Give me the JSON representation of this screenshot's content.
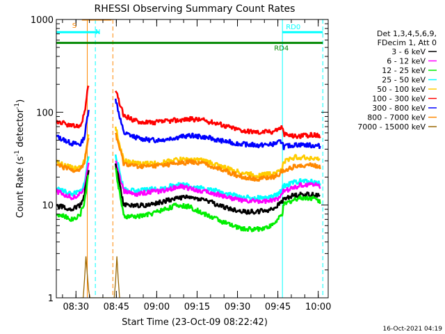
{
  "colors": {
    "3-6": "#000000",
    "6-12": "#ff00ff",
    "12-25": "#00ee00",
    "25-50": "#00ffff",
    "50-100": "#ffcc00",
    "100-300": "#ff0000",
    "300-800": "#0000ff",
    "800-7000": "#ff8800",
    "7000-15000": "#996600",
    "rd": "#008800",
    "sn": "#ff8800"
  },
  "chart_data": {
    "type": "line",
    "title": "RHESSI Observing Summary Count Rates",
    "xlabel": "Start Time (23-Oct-09 08:22:42)",
    "ylabel": "Count Rate (s",
    "ylabel_sup": "-1",
    "ylabel_mid": " detector",
    "ylabel_end": ")",
    "yscale": "log",
    "ylim": [
      1,
      1000
    ],
    "xlim_minutes_after_0822": [
      0,
      101
    ],
    "x_tick_labels": [
      "08:30",
      "08:45",
      "09:00",
      "09:15",
      "09:30",
      "09:45",
      "10:00"
    ],
    "x_tick_minutes_after_0822": [
      7.3,
      22.3,
      37.3,
      52.3,
      67.3,
      82.3,
      97.3
    ],
    "y_tick_labels": [
      "1",
      "10",
      "100",
      "1000"
    ],
    "y_tick_values": [
      1,
      10,
      100,
      1000
    ],
    "legend": {
      "placement": "right",
      "header": [
        "Det 1,3,4,5,6,9,",
        "FDecim 1, Att 0"
      ],
      "entries": [
        {
          "label": "3 - 6 keV",
          "series": "3-6"
        },
        {
          "label": "6 - 12 keV",
          "series": "6-12"
        },
        {
          "label": "12 - 25 keV",
          "series": "12-25"
        },
        {
          "label": "25 - 50 keV",
          "series": "25-50"
        },
        {
          "label": "50 - 100 keV",
          "series": "50-100"
        },
        {
          "label": "100 - 300 keV",
          "series": "100-300"
        },
        {
          "label": "300 - 800 keV",
          "series": "300-800"
        },
        {
          "label": "800 - 7000 keV",
          "series": "800-7000"
        },
        {
          "label": "7000 - 15000 keV",
          "series": "7000-15000"
        }
      ]
    },
    "flags": [
      {
        "label": "S",
        "start": 9.5,
        "end": 20.5,
        "level": 1000,
        "color": "sn"
      },
      {
        "label": "N",
        "start": 0,
        "end": 16,
        "level": 730,
        "color": "25-50"
      },
      {
        "label": "RD0",
        "start": 84,
        "end": 99,
        "level": 730,
        "color": "25-50"
      },
      {
        "label": "RD4",
        "start": 0,
        "end": 99,
        "level": 560,
        "color": "rd"
      }
    ],
    "markers": [
      {
        "x": 11.5,
        "style": "solid",
        "color": "sn"
      },
      {
        "x": 14.5,
        "style": "dashed",
        "color": "25-50"
      },
      {
        "x": 21,
        "style": "dashed",
        "color": "sn"
      },
      {
        "x": 84,
        "style": "solid",
        "color": "25-50"
      },
      {
        "x": 99,
        "style": "dashed",
        "color": "25-50"
      }
    ],
    "series": [
      {
        "key": "300-800",
        "x": [
          0,
          3,
          6,
          9,
          10.5,
          12,
          13,
          20,
          22,
          25,
          30,
          35,
          40,
          45,
          50,
          55,
          60,
          65,
          70,
          75,
          80,
          82.5,
          83.9,
          84.5,
          87,
          90,
          95,
          98
        ],
        "y": [
          55,
          50,
          46,
          45,
          55,
          110,
          null,
          null,
          140,
          60,
          53,
          50,
          51,
          54,
          56,
          54,
          50,
          47,
          45,
          44,
          45,
          47,
          49,
          42,
          44,
          45,
          44,
          43
        ]
      },
      {
        "key": "100-300",
        "x": [
          0,
          3,
          6,
          9,
          10.5,
          12,
          13,
          20,
          22,
          25,
          30,
          35,
          40,
          45,
          50,
          55,
          60,
          65,
          70,
          75,
          80,
          82.5,
          83.9,
          84.5,
          87,
          90,
          95,
          98
        ],
        "y": [
          80,
          75,
          70,
          72,
          100,
          200,
          null,
          null,
          170,
          92,
          80,
          77,
          79,
          82,
          85,
          82,
          76,
          68,
          63,
          61,
          62,
          66,
          70,
          58,
          56,
          55,
          57,
          56
        ]
      },
      {
        "key": "50-100",
        "x": [
          0,
          3,
          6,
          9,
          10.5,
          12,
          13,
          20,
          22,
          25,
          30,
          35,
          40,
          45,
          50,
          55,
          60,
          65,
          70,
          75,
          80,
          82.5,
          83.9,
          84.5,
          87,
          90,
          95,
          98
        ],
        "y": [
          29,
          27,
          25,
          25,
          30,
          60,
          null,
          null,
          70,
          30,
          28,
          28,
          29,
          31,
          31,
          30,
          27,
          24,
          22,
          21,
          22,
          23,
          25,
          29,
          32,
          33,
          32,
          31
        ]
      },
      {
        "key": "800-7000",
        "x": [
          0,
          3,
          6,
          9,
          10.5,
          12,
          13,
          20,
          22,
          25,
          30,
          35,
          40,
          45,
          50,
          55,
          60,
          65,
          70,
          75,
          80,
          82.5,
          83.9,
          84.5,
          87,
          90,
          95,
          98
        ],
        "y": [
          27,
          25,
          24,
          24,
          29,
          55,
          null,
          null,
          60,
          28,
          26,
          26,
          27,
          28,
          29,
          28,
          25,
          22,
          20,
          19,
          20,
          21,
          23,
          23,
          25,
          27,
          27,
          26
        ]
      },
      {
        "key": "25-50",
        "x": [
          0,
          3,
          6,
          9,
          10.5,
          12,
          13,
          20,
          22,
          25,
          30,
          35,
          40,
          45,
          50,
          55,
          60,
          65,
          70,
          75,
          80,
          82.5,
          83.9,
          84.5,
          87,
          90,
          95,
          98
        ],
        "y": [
          15,
          14,
          13,
          14,
          17,
          35,
          null,
          null,
          35,
          15,
          14,
          15,
          15,
          17,
          16,
          15,
          14,
          13,
          12,
          12,
          12,
          13,
          15,
          16,
          17,
          18,
          18,
          17
        ]
      },
      {
        "key": "6-12",
        "x": [
          0,
          3,
          6,
          9,
          10.5,
          12,
          13,
          20,
          22,
          25,
          30,
          35,
          40,
          45,
          50,
          55,
          60,
          65,
          70,
          75,
          80,
          82.5,
          83.9,
          84.5,
          87,
          90,
          95,
          98
        ],
        "y": [
          14,
          13,
          12,
          13,
          16,
          30,
          null,
          null,
          30,
          14,
          13,
          14,
          14,
          16,
          15,
          14,
          13,
          12,
          11,
          11,
          11,
          12,
          14,
          14,
          15,
          16,
          17,
          16
        ]
      },
      {
        "key": "3-6",
        "x": [
          0,
          3,
          6,
          9,
          10.5,
          12,
          13,
          20,
          22,
          25,
          30,
          35,
          40,
          45,
          50,
          55,
          60,
          65,
          70,
          75,
          80,
          82.5,
          83.9,
          84.5,
          87,
          90,
          95,
          98
        ],
        "y": [
          10,
          9.5,
          9,
          10,
          13,
          25,
          null,
          null,
          28,
          10,
          10,
          10,
          11,
          12,
          12,
          11.5,
          10,
          9,
          8.5,
          8.5,
          9,
          10,
          11,
          11.5,
          12.5,
          13,
          13,
          12.5
        ]
      },
      {
        "key": "12-25",
        "x": [
          0,
          3,
          6,
          9,
          10.5,
          12,
          13,
          20,
          22,
          25,
          30,
          35,
          40,
          45,
          50,
          55,
          60,
          65,
          70,
          75,
          80,
          82.5,
          83.9,
          84.5,
          87,
          90,
          95,
          98
        ],
        "y": [
          8,
          7.5,
          7,
          8,
          11,
          22,
          null,
          null,
          25,
          7.5,
          7.5,
          8,
          9,
          10,
          9.5,
          8,
          7,
          6,
          5.5,
          5.5,
          6,
          7,
          8,
          10,
          11,
          12,
          12,
          11
        ]
      },
      {
        "key": "7000-15000",
        "x": [
          9,
          10,
          10.5,
          11,
          11.5,
          12,
          12.5,
          21.5,
          22,
          22.5,
          23,
          23.5
        ],
        "y": [
          1,
          1,
          1.6,
          2.8,
          1.8,
          1.2,
          1,
          1,
          1.5,
          2.8,
          1.6,
          1
        ]
      }
    ]
  },
  "footer": {
    "date": "16-Oct-2021 04:19"
  }
}
